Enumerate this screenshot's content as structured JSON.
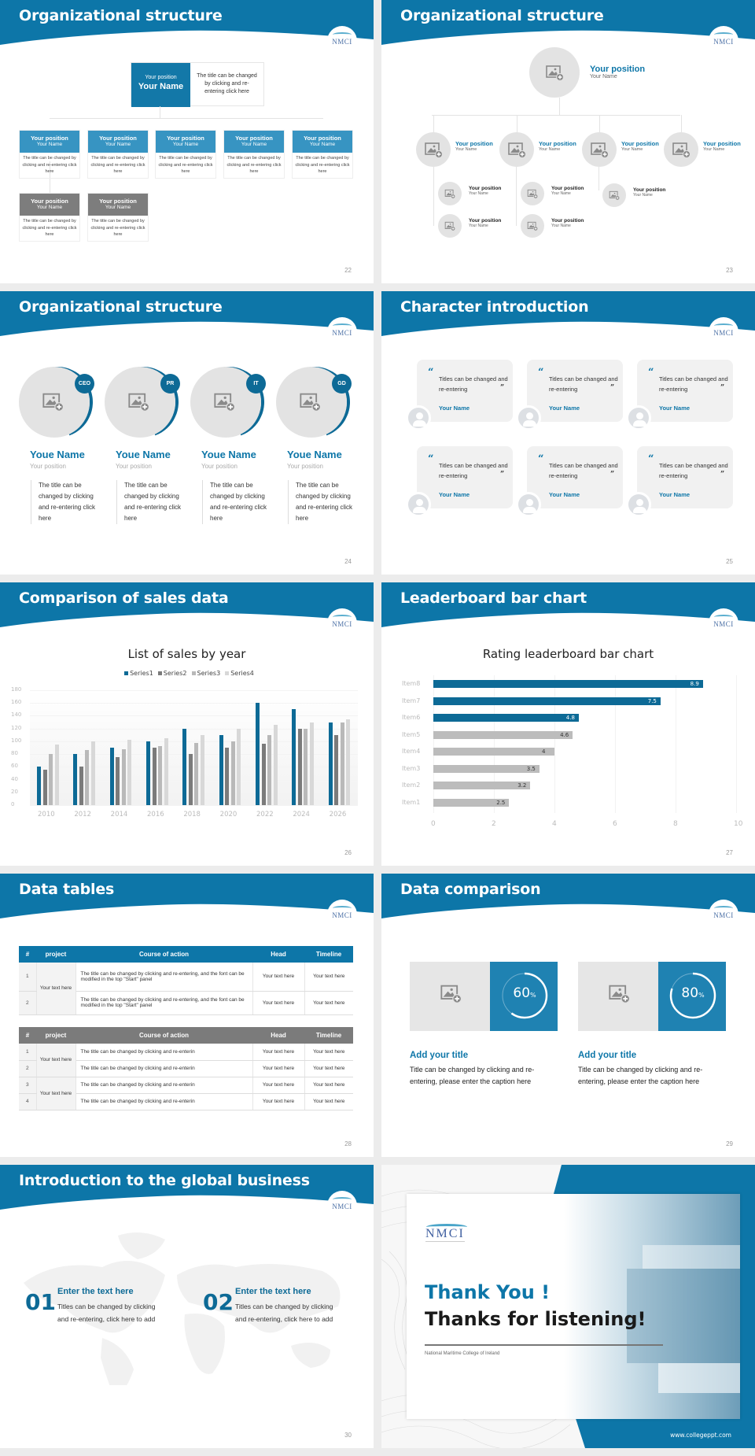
{
  "theme": {
    "primary": "#0d76a8",
    "primary_light": "#3794c2",
    "gray": "#7d7d7d",
    "light_gray": "#e3e3e3"
  },
  "logo": {
    "text": "NMCI"
  },
  "slides": [
    {
      "page": "22",
      "title": "Organizational structure",
      "top": {
        "position": "Your position",
        "name": "Your Name",
        "desc": "The title can be changed by clicking and re-entering click here"
      },
      "nodes": [
        {
          "position": "Your position",
          "name": "Your Name",
          "desc": "The title can be changed by clicking and re-entering click here",
          "color": "blue"
        },
        {
          "position": "Your position",
          "name": "Your Name",
          "desc": "The title can be changed by clicking and re-entering click here",
          "color": "blue"
        },
        {
          "position": "Your position",
          "name": "Your Name",
          "desc": "The title can be changed by clicking and re-entering click here",
          "color": "blue"
        },
        {
          "position": "Your position",
          "name": "Your Name",
          "desc": "The title can be changed by clicking and re-entering click here",
          "color": "blue"
        },
        {
          "position": "Your position",
          "name": "Your Name",
          "desc": "The title can be changed by clicking and re-entering click here",
          "color": "blue"
        },
        {
          "position": "Your position",
          "name": "Your Name",
          "desc": "The title can be changed by clicking and re-entering click here",
          "color": "gray"
        },
        {
          "position": "Your position",
          "name": "Your Name",
          "desc": "The title can be changed by clicking and re-entering click here",
          "color": "gray"
        }
      ]
    },
    {
      "page": "23",
      "title": "Organizational structure",
      "top": {
        "position": "Your position",
        "name": "Your Name"
      },
      "level2": [
        {
          "position": "Your position",
          "name": "Your Name"
        },
        {
          "position": "Your position",
          "name": "Your Name"
        },
        {
          "position": "Your position",
          "name": "Your Name"
        },
        {
          "position": "Your position",
          "name": "Your Name"
        }
      ],
      "level3": [
        {
          "position": "Your position",
          "name": "Your Name"
        },
        {
          "position": "Your position",
          "name": "Your Name"
        },
        {
          "position": "Your position",
          "name": "Your Name"
        },
        {
          "position": "Your position",
          "name": "Your Name"
        },
        {
          "position": "Your position",
          "name": "Your Name"
        }
      ]
    },
    {
      "page": "24",
      "title": "Organizational structure",
      "people": [
        {
          "tag": "CEO",
          "name": "Youe Name",
          "position": "Your position",
          "desc": "The title can be changed by clicking and re-entering click here"
        },
        {
          "tag": "PR",
          "name": "Youe Name",
          "position": "Your position",
          "desc": "The title can be changed by clicking and re-entering click here"
        },
        {
          "tag": "IT",
          "name": "Youe Name",
          "position": "Your position",
          "desc": "The title can be changed by clicking and re-entering click here"
        },
        {
          "tag": "GD",
          "name": "Youe Name",
          "position": "Your position",
          "desc": "The title can be changed by clicking and re-entering click here"
        }
      ]
    },
    {
      "page": "25",
      "title": "Character introduction",
      "quotes": [
        {
          "open": "“",
          "close": "”",
          "text": "Titles can be changed and re-entering",
          "name": "Your Name"
        },
        {
          "open": "“",
          "close": "”",
          "text": "Titles can be changed and re-entering",
          "name": "Your Name"
        },
        {
          "open": "“",
          "close": "”",
          "text": "Titles can be changed and re-entering",
          "name": "Your Name"
        },
        {
          "open": "“",
          "close": "”",
          "text": "Titles can be changed and re-entering",
          "name": "Your Name"
        },
        {
          "open": "“",
          "close": "”",
          "text": "Titles can be changed and re-entering",
          "name": "Your Name"
        },
        {
          "open": "“",
          "close": "”",
          "text": "Titles can be changed and re-entering",
          "name": "Your Name"
        }
      ]
    },
    {
      "page": "26",
      "title": "Comparison of sales data",
      "chart_title": "List of sales by year",
      "legend": [
        "Series1",
        "Series2",
        "Series3",
        "Series4"
      ],
      "y_ticks": [
        "180",
        "160",
        "140",
        "120",
        "100",
        "80",
        "60",
        "40",
        "20",
        "0"
      ],
      "x_ticks": [
        "2010",
        "2012",
        "2014",
        "2016",
        "2018",
        "2020",
        "2022",
        "2024",
        "2026"
      ]
    },
    {
      "page": "27",
      "title": "Leaderboard bar chart",
      "chart_title": "Rating leaderboard bar chart",
      "x_ticks": [
        "0",
        "2",
        "4",
        "6",
        "8",
        "10"
      ]
    },
    {
      "page": "28",
      "title": "Data tables",
      "headers": [
        "#",
        "project",
        "Course of action",
        "Head",
        "Timeline"
      ],
      "table1": {
        "project": "Your text here",
        "rows": [
          {
            "num": "1",
            "action": "The title can be changed by clicking and re-entering, and the font can be modified in the top \"Start\" panel",
            "head": "Your text here",
            "timeline": "Your text here"
          },
          {
            "num": "2",
            "action": "The title can be changed by clicking and re-entering, and the font can be modified in the top \"Start\" panel",
            "head": "Your text here",
            "timeline": "Your text here"
          }
        ]
      },
      "table2": {
        "projects": [
          "Your text here",
          "Your text here"
        ],
        "rows": [
          {
            "num": "1",
            "action": "The title can be changed by clicking and re-enterin",
            "head": "Your text here",
            "timeline": "Your text here"
          },
          {
            "num": "2",
            "action": "The title can be changed by clicking and re-enterin",
            "head": "Your text here",
            "timeline": "Your text here"
          },
          {
            "num": "3",
            "action": "The title can be changed by clicking and re-enterin",
            "head": "Your text here",
            "timeline": "Your text here"
          },
          {
            "num": "4",
            "action": "The title can be changed by clicking and re-enterin",
            "head": "Your text here",
            "timeline": "Your text here"
          }
        ]
      }
    },
    {
      "page": "29",
      "title": "Data comparison",
      "items": [
        {
          "percent": "60",
          "unit": "%",
          "heading": "Add your title",
          "desc": "Title can be changed by clicking and re-entering, please enter the caption here"
        },
        {
          "percent": "80",
          "unit": "%",
          "heading": "Add your title",
          "desc": "Title can be changed by clicking and re-entering, please enter the caption here"
        }
      ]
    },
    {
      "page": "30",
      "title": "Introduction to the global business",
      "items": [
        {
          "num": "01",
          "heading": "Enter the text here",
          "desc": "Titles can be changed by clicking and re-entering, click here to add"
        },
        {
          "num": "02",
          "heading": "Enter the text here",
          "desc": "Titles can be changed by clicking and re-entering, click here to add"
        }
      ]
    },
    {
      "title1": "Thank You !",
      "title2": "Thanks for listening!",
      "subtitle": "National Maritime College of Ireland",
      "url": "www.collegeppt.com"
    }
  ],
  "chart_data": [
    {
      "type": "bar",
      "title": "List of sales by year",
      "xlabel": "",
      "ylabel": "",
      "categories": [
        "2010",
        "2012",
        "2014",
        "2016",
        "2018",
        "2020",
        "2022",
        "2024",
        "2026"
      ],
      "series": [
        {
          "name": "Series1",
          "color": "#0d6a96",
          "values": [
            60,
            80,
            90,
            100,
            120,
            110,
            160,
            150,
            130
          ]
        },
        {
          "name": "Series2",
          "color": "#7b7b7b",
          "values": [
            55,
            60,
            75,
            90,
            80,
            90,
            96,
            120,
            110
          ]
        },
        {
          "name": "Series3",
          "color": "#b9b9b9",
          "values": [
            80,
            86,
            88,
            92,
            98,
            100,
            110,
            120,
            130
          ]
        },
        {
          "name": "Series4",
          "color": "#d8d8d8",
          "values": [
            95,
            100,
            102,
            105,
            110,
            120,
            126,
            130,
            135
          ]
        }
      ],
      "ylim": [
        0,
        180
      ],
      "grid": true,
      "legend_position": "top"
    },
    {
      "type": "bar",
      "orientation": "horizontal",
      "title": "Rating leaderboard bar chart",
      "categories": [
        "Item8",
        "Item7",
        "Item6",
        "Item5",
        "Item4",
        "Item3",
        "Item2",
        "Item1"
      ],
      "values": [
        8.9,
        7.5,
        4.8,
        4.6,
        4,
        3.5,
        3.2,
        2.5
      ],
      "labels": [
        "8.9",
        "7.5",
        "4.8",
        "4.6",
        "4",
        "3.5",
        "3.2",
        "2.5"
      ],
      "colors": [
        "#0d6a96",
        "#0d6a96",
        "#0d6a96",
        "#bcbcbc",
        "#bcbcbc",
        "#bcbcbc",
        "#bcbcbc",
        "#bcbcbc"
      ],
      "xlim": [
        0,
        10
      ],
      "grid": true
    }
  ]
}
